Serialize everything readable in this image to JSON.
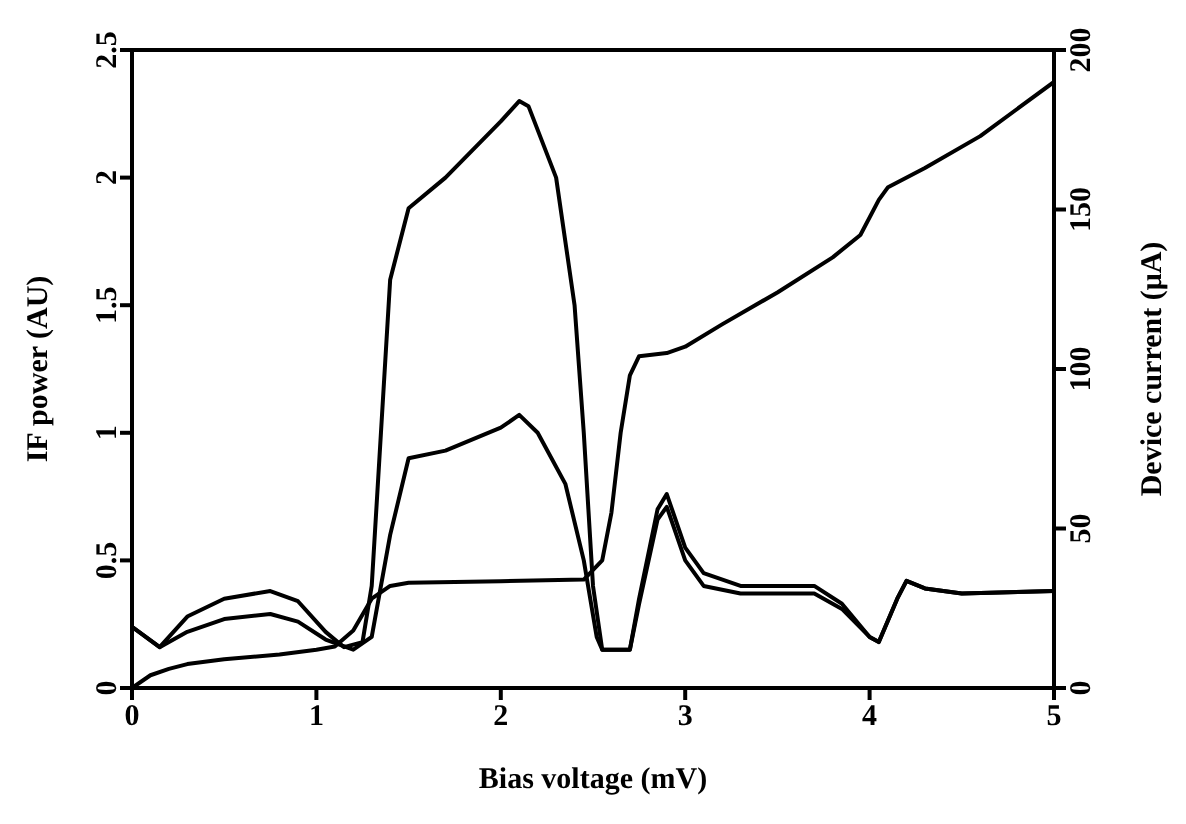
{
  "chart_data": {
    "type": "line",
    "xlabel": "Bias voltage (mV)",
    "ylabel": "IF power (AU)",
    "y2label": "Device current (μA)",
    "xlim": [
      0,
      5
    ],
    "xticks": [
      0,
      1,
      2,
      3,
      4,
      5
    ],
    "ylim": [
      0,
      2.5
    ],
    "yticks": [
      0,
      0.5,
      1,
      1.5,
      2,
      2.5
    ],
    "y2lim": [
      0,
      200
    ],
    "y2ticks": [
      0,
      50,
      100,
      150,
      200
    ],
    "marker": "none",
    "line_style": "solid",
    "series": [
      {
        "color": "#000000",
        "x": [
          0,
          0.15,
          0.3,
          0.5,
          0.75,
          0.9,
          1.05,
          1.15,
          1.25,
          1.3,
          1.35,
          1.4,
          1.5,
          1.7,
          2.0,
          2.1,
          2.15,
          2.3,
          2.4,
          2.45,
          2.5,
          2.55,
          2.7,
          2.75,
          2.85,
          2.9,
          3.0,
          3.1,
          3.3,
          3.7,
          3.85,
          4.0,
          4.05,
          4.15,
          4.2,
          4.3,
          4.5,
          5.0
        ],
        "values": [
          0.24,
          0.16,
          0.28,
          0.35,
          0.38,
          0.34,
          0.22,
          0.16,
          0.18,
          0.4,
          1.0,
          1.6,
          1.88,
          2.0,
          2.22,
          2.3,
          2.28,
          2.0,
          1.5,
          1.0,
          0.4,
          0.15,
          0.15,
          0.35,
          0.7,
          0.76,
          0.55,
          0.45,
          0.4,
          0.4,
          0.33,
          0.2,
          0.18,
          0.35,
          0.42,
          0.39,
          0.37,
          0.38
        ]
      },
      {
        "color": "#000000",
        "x": [
          0,
          0.15,
          0.3,
          0.5,
          0.75,
          0.9,
          1.05,
          1.2,
          1.3,
          1.4,
          1.5,
          1.7,
          2.0,
          2.1,
          2.2,
          2.35,
          2.45,
          2.52,
          2.55,
          2.7,
          2.75,
          2.85,
          2.9,
          3.0,
          3.1,
          3.3,
          3.7,
          3.85,
          4.0,
          4.05,
          4.15,
          4.2,
          4.3,
          4.5,
          5.0
        ],
        "values": [
          0.24,
          0.16,
          0.22,
          0.27,
          0.29,
          0.26,
          0.19,
          0.15,
          0.2,
          0.6,
          0.9,
          0.93,
          1.02,
          1.07,
          1.0,
          0.8,
          0.5,
          0.2,
          0.15,
          0.15,
          0.33,
          0.66,
          0.71,
          0.5,
          0.4,
          0.37,
          0.37,
          0.31,
          0.2,
          0.18,
          0.35,
          0.42,
          0.39,
          0.37,
          0.38
        ]
      },
      {
        "color": "#000000",
        "axis": "y2",
        "x": [
          0,
          0.1,
          0.2,
          0.3,
          0.5,
          0.8,
          1.0,
          1.1,
          1.2,
          1.3,
          1.4,
          1.5,
          2.0,
          2.45,
          2.55,
          2.6,
          2.65,
          2.7,
          2.75,
          2.9,
          3.0,
          3.2,
          3.5,
          3.8,
          3.95,
          4.05,
          4.1,
          4.3,
          4.6,
          5.0
        ],
        "values": [
          0,
          4,
          6,
          7.5,
          9,
          10.5,
          12,
          13,
          18,
          28,
          32,
          33,
          33.5,
          34,
          40,
          55,
          80,
          98,
          104,
          105,
          107,
          114,
          124,
          135,
          142,
          153,
          157,
          163,
          173,
          190
        ]
      }
    ]
  }
}
